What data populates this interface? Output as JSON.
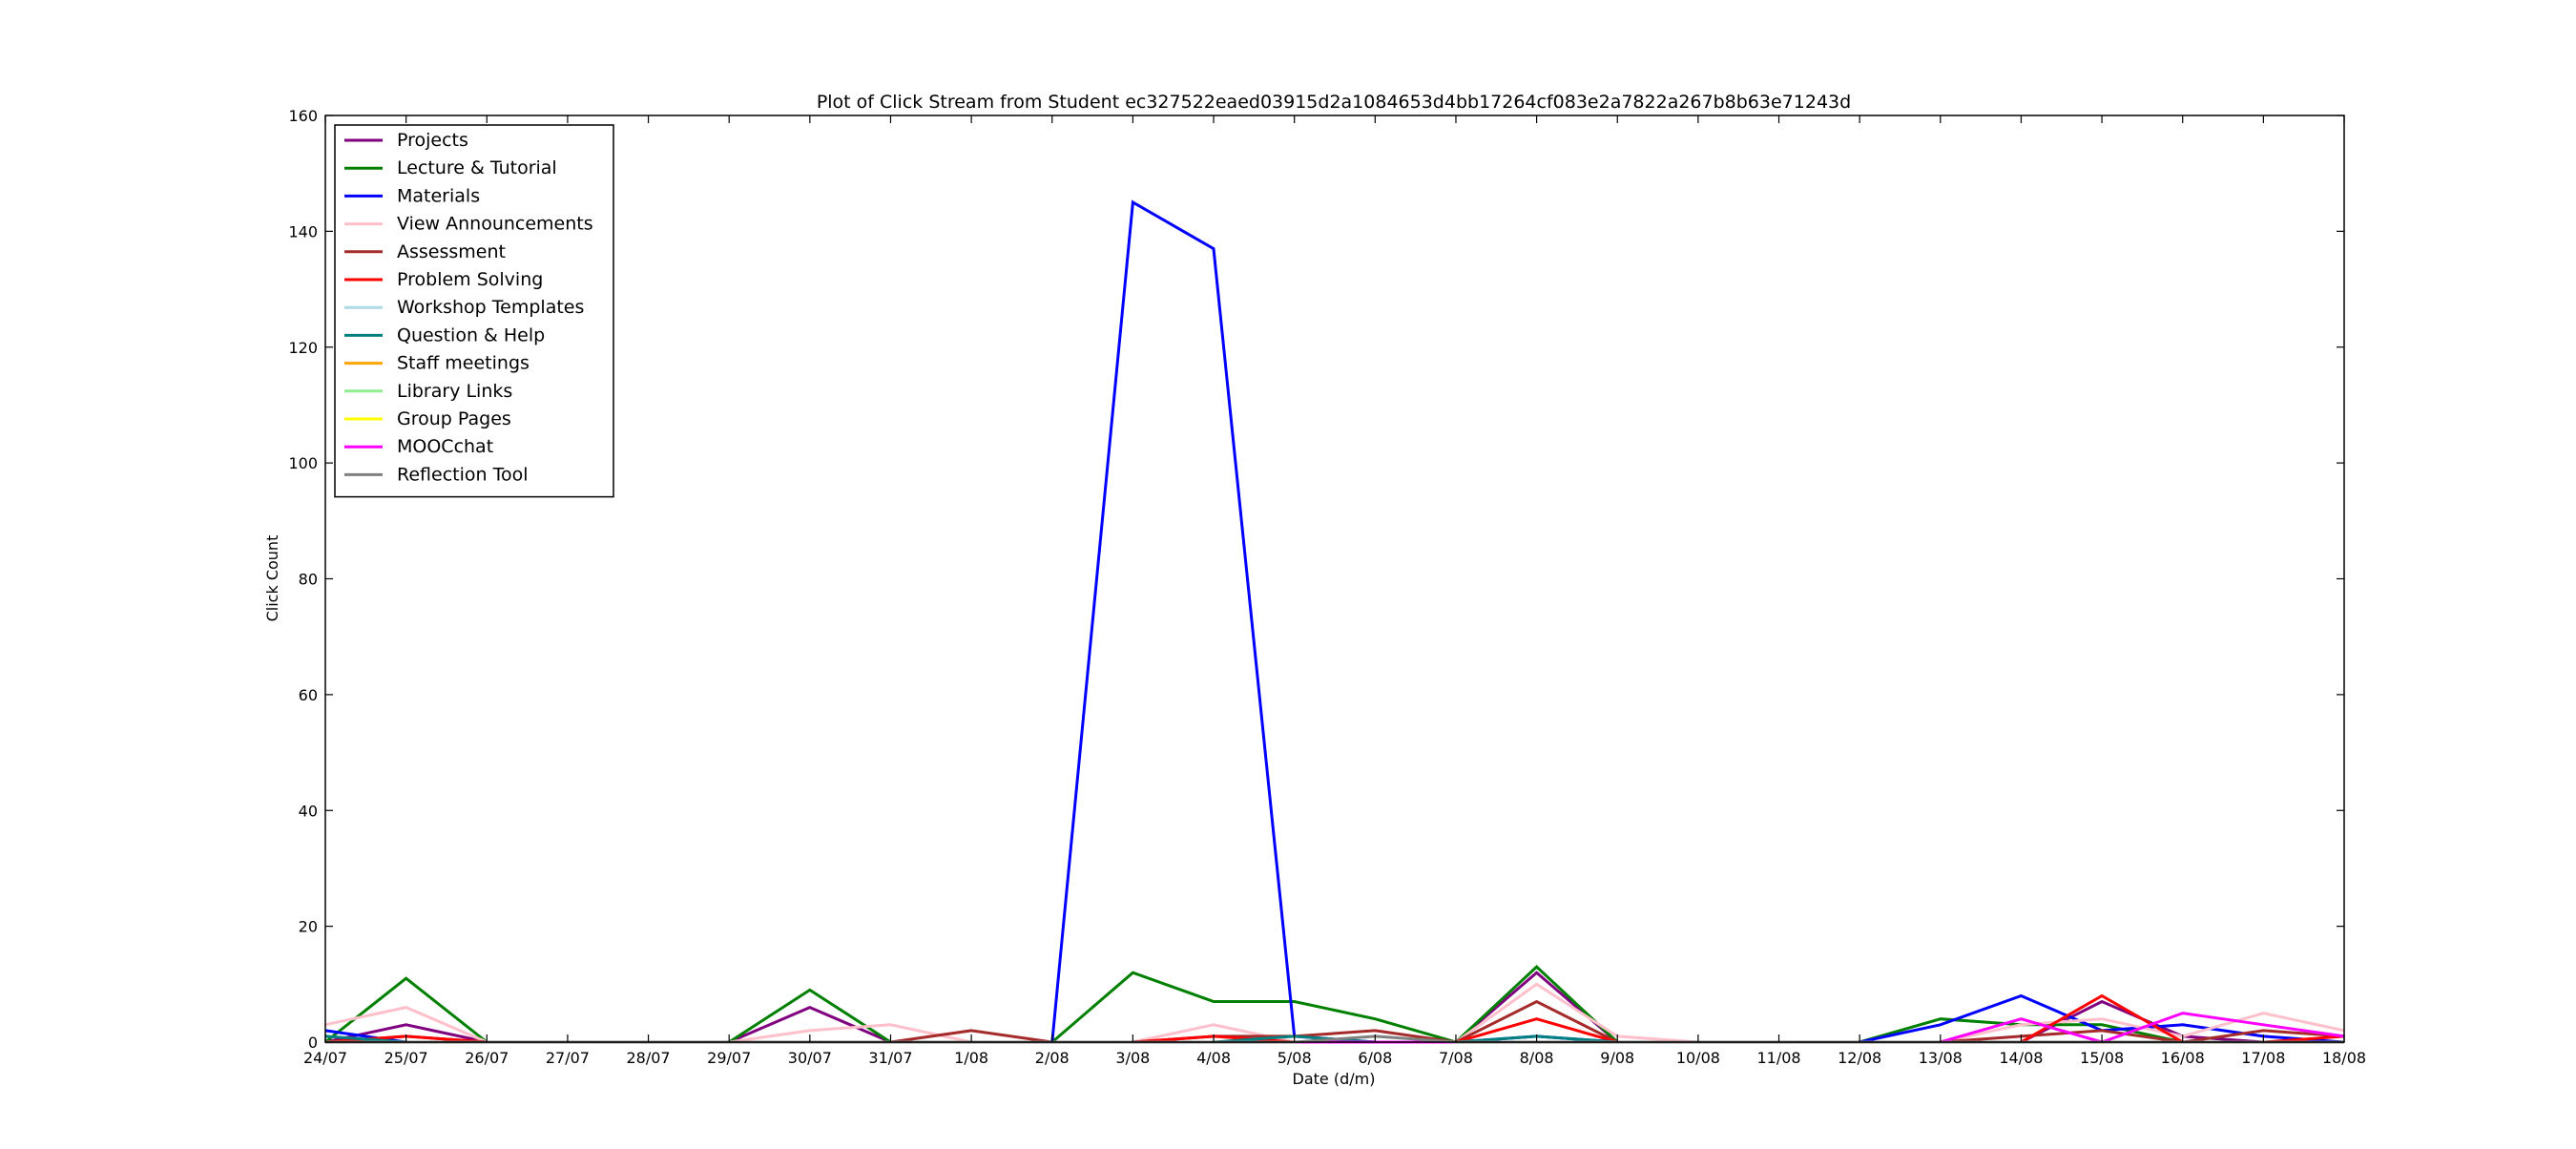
{
  "chart_data": {
    "type": "line",
    "title": "Plot of Click Stream from Student ec327522eaed03915d2a1084653d4bb17264cf083e2a7822a267b8b63e71243d",
    "xlabel": "Date (d/m)",
    "ylabel": "Click Count",
    "ylim": [
      0,
      160
    ],
    "yticks": [
      0,
      20,
      40,
      60,
      80,
      100,
      120,
      140,
      160
    ],
    "categories": [
      "24/07",
      "25/07",
      "26/07",
      "27/07",
      "28/07",
      "29/07",
      "30/07",
      "31/07",
      "1/08",
      "2/08",
      "3/08",
      "4/08",
      "5/08",
      "6/08",
      "7/08",
      "8/08",
      "9/08",
      "10/08",
      "11/08",
      "12/08",
      "13/08",
      "14/08",
      "15/08",
      "16/08",
      "17/08",
      "18/08"
    ],
    "grid": false,
    "legend_position": "top-left",
    "series": [
      {
        "name": "Projects",
        "color": "#800080",
        "values": [
          0,
          3,
          0,
          0,
          0,
          0,
          6,
          0,
          0,
          0,
          0,
          0,
          0,
          0,
          0,
          12,
          0,
          0,
          0,
          0,
          0,
          0,
          7,
          1,
          0,
          0
        ]
      },
      {
        "name": "Lecture & Tutorial",
        "color": "#008000",
        "values": [
          0,
          11,
          0,
          0,
          0,
          0,
          9,
          0,
          0,
          0,
          12,
          7,
          7,
          4,
          0,
          13,
          0,
          0,
          0,
          0,
          4,
          3,
          3,
          0,
          0,
          0
        ]
      },
      {
        "name": "Materials",
        "color": "#0000ff",
        "values": [
          2,
          0,
          0,
          0,
          0,
          0,
          0,
          0,
          0,
          0,
          145,
          137,
          1,
          0,
          0,
          1,
          0,
          0,
          0,
          0,
          3,
          8,
          2,
          3,
          1,
          0
        ]
      },
      {
        "name": "View Announcements",
        "color": "#ffc0cb",
        "values": [
          3,
          6,
          0,
          0,
          0,
          0,
          2,
          3,
          0,
          0,
          0,
          3,
          0,
          0,
          0,
          10,
          1,
          0,
          0,
          0,
          0,
          3,
          4,
          1,
          5,
          2
        ]
      },
      {
        "name": "Assessment",
        "color": "#a52a2a",
        "values": [
          0,
          1,
          0,
          0,
          0,
          0,
          0,
          0,
          2,
          0,
          0,
          1,
          1,
          2,
          0,
          7,
          0,
          0,
          0,
          0,
          0,
          1,
          2,
          0,
          2,
          1
        ]
      },
      {
        "name": "Problem Solving",
        "color": "#ff0000",
        "values": [
          0,
          1,
          0,
          0,
          0,
          0,
          0,
          0,
          0,
          0,
          0,
          1,
          0,
          0,
          0,
          4,
          0,
          0,
          0,
          0,
          0,
          0,
          8,
          0,
          0,
          1
        ]
      },
      {
        "name": "Workshop Templates",
        "color": "#add8e6",
        "values": [
          0,
          0,
          0,
          0,
          0,
          0,
          0,
          0,
          0,
          0,
          0,
          0,
          0,
          0,
          0,
          0,
          0,
          0,
          0,
          0,
          0,
          0,
          0,
          0,
          0,
          0
        ]
      },
      {
        "name": "Question & Help",
        "color": "#008080",
        "values": [
          1,
          0,
          0,
          0,
          0,
          0,
          0,
          0,
          0,
          0,
          0,
          0,
          1,
          0,
          0,
          1,
          0,
          0,
          0,
          0,
          0,
          0,
          0,
          0,
          0,
          0
        ]
      },
      {
        "name": "Staff meetings",
        "color": "#ffa500",
        "values": [
          0,
          0,
          0,
          0,
          0,
          0,
          0,
          0,
          0,
          0,
          0,
          0,
          0,
          0,
          0,
          0,
          0,
          0,
          0,
          0,
          0,
          0,
          0,
          0,
          0,
          0
        ]
      },
      {
        "name": "Library Links",
        "color": "#90ee90",
        "values": [
          0,
          0,
          0,
          0,
          0,
          0,
          0,
          0,
          0,
          0,
          0,
          0,
          0,
          0,
          0,
          0,
          0,
          0,
          0,
          0,
          0,
          0,
          0,
          0,
          0,
          0
        ]
      },
      {
        "name": "Group Pages",
        "color": "#ffff00",
        "values": [
          0,
          0,
          0,
          0,
          0,
          0,
          0,
          0,
          0,
          0,
          0,
          0,
          0,
          0,
          0,
          0,
          0,
          0,
          0,
          0,
          0,
          0,
          0,
          0,
          0,
          0
        ]
      },
      {
        "name": "MOOCchat",
        "color": "#ff00ff",
        "values": [
          0,
          0,
          0,
          0,
          0,
          0,
          0,
          0,
          0,
          0,
          0,
          0,
          0,
          0,
          0,
          0,
          0,
          0,
          0,
          0,
          0,
          4,
          0,
          5,
          3,
          1
        ]
      },
      {
        "name": "Reflection Tool",
        "color": "#808080",
        "values": [
          0,
          0,
          0,
          0,
          0,
          0,
          0,
          0,
          0,
          0,
          0,
          0,
          0,
          1,
          0,
          0,
          0,
          0,
          0,
          0,
          0,
          0,
          0,
          0,
          0,
          0
        ]
      }
    ]
  }
}
